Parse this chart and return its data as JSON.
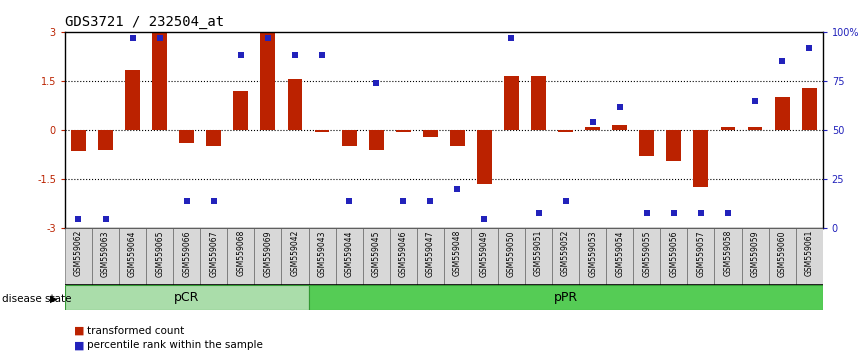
{
  "title": "GDS3721 / 232504_at",
  "samples": [
    "GSM559062",
    "GSM559063",
    "GSM559064",
    "GSM559065",
    "GSM559066",
    "GSM559067",
    "GSM559068",
    "GSM559069",
    "GSM559042",
    "GSM559043",
    "GSM559044",
    "GSM559045",
    "GSM559046",
    "GSM559047",
    "GSM559048",
    "GSM559049",
    "GSM559050",
    "GSM559051",
    "GSM559052",
    "GSM559053",
    "GSM559054",
    "GSM559055",
    "GSM559056",
    "GSM559057",
    "GSM559058",
    "GSM559059",
    "GSM559060",
    "GSM559061"
  ],
  "bar_values": [
    -0.65,
    -0.6,
    1.85,
    3.0,
    -0.4,
    -0.5,
    1.2,
    3.0,
    1.55,
    -0.05,
    -0.5,
    -0.6,
    -0.05,
    -0.2,
    -0.5,
    -1.65,
    1.65,
    1.65,
    -0.05,
    0.1,
    0.15,
    -0.8,
    -0.95,
    -1.75,
    0.1,
    0.08,
    1.0,
    1.3
  ],
  "blue_pct": [
    5,
    5,
    97,
    97,
    14,
    14,
    88,
    97,
    88,
    88,
    14,
    74,
    14,
    14,
    20,
    5,
    97,
    8,
    14,
    54,
    62,
    8,
    8,
    8,
    8,
    65,
    85,
    92
  ],
  "pCR_count": 9,
  "pPR_count": 19,
  "bar_color": "#bb2200",
  "dot_color": "#2222bb",
  "pCR_color": "#aaddaa",
  "pPR_color": "#55cc55",
  "pCR_edge": "#339933",
  "pPR_edge": "#339933",
  "disease_label": "disease state",
  "pCR_label": "pCR",
  "pPR_label": "pPR",
  "legend_bar": "transformed count",
  "legend_dot": "percentile rank within the sample",
  "title_fontsize": 10,
  "tick_fontsize": 7,
  "sample_fontsize": 5.5,
  "legend_fontsize": 7.5,
  "disease_fontsize": 7.5
}
